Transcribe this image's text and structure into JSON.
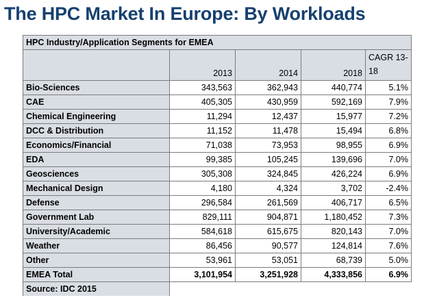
{
  "title": "The HPC Market In Europe: By Workloads",
  "table": {
    "caption": "HPC Industry/Application Segments for EMEA",
    "headers": [
      "",
      "2013",
      "2014",
      "2018",
      "CAGR 13-18"
    ],
    "rows": [
      {
        "segment": "Bio-Sciences",
        "y2013": "343,563",
        "y2014": "362,943",
        "y2018": "440,774",
        "cagr": "5.1%"
      },
      {
        "segment": "CAE",
        "y2013": "405,305",
        "y2014": "430,959",
        "y2018": "592,169",
        "cagr": "7.9%"
      },
      {
        "segment": "Chemical Engineering",
        "y2013": "11,294",
        "y2014": "12,437",
        "y2018": "15,977",
        "cagr": "7.2%"
      },
      {
        "segment": "DCC & Distribution",
        "y2013": "11,152",
        "y2014": "11,478",
        "y2018": "15,494",
        "cagr": "6.8%"
      },
      {
        "segment": "Economics/Financial",
        "y2013": "71,038",
        "y2014": "73,953",
        "y2018": "98,955",
        "cagr": "6.9%"
      },
      {
        "segment": "EDA",
        "y2013": "99,385",
        "y2014": "105,245",
        "y2018": "139,696",
        "cagr": "7.0%"
      },
      {
        "segment": "Geosciences",
        "y2013": "305,308",
        "y2014": "324,845",
        "y2018": "426,224",
        "cagr": "6.9%"
      },
      {
        "segment": "Mechanical Design",
        "y2013": "4,180",
        "y2014": "4,324",
        "y2018": "3,702",
        "cagr": "-2.4%"
      },
      {
        "segment": "Defense",
        "y2013": "296,584",
        "y2014": "261,569",
        "y2018": "406,717",
        "cagr": "6.5%"
      },
      {
        "segment": "Government Lab",
        "y2013": "829,111",
        "y2014": "904,871",
        "y2018": "1,180,452",
        "cagr": "7.3%"
      },
      {
        "segment": "University/Academic",
        "y2013": "584,618",
        "y2014": "615,675",
        "y2018": "820,143",
        "cagr": "7.0%"
      },
      {
        "segment": "Weather",
        "y2013": "86,456",
        "y2014": "90,577",
        "y2018": "124,814",
        "cagr": "7.6%"
      },
      {
        "segment": "Other",
        "y2013": "53,961",
        "y2014": "53,051",
        "y2018": "68,739",
        "cagr": "5.0%"
      }
    ],
    "total": {
      "segment": "EMEA Total",
      "y2013": "3,101,954",
      "y2014": "3,251,928",
      "y2018": "4,333,856",
      "cagr": "6.9%"
    },
    "source": "Source: IDC 2015"
  }
}
